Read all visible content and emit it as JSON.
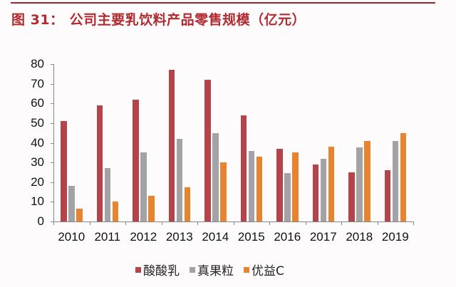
{
  "title": {
    "figure_label": "图 31：",
    "text": "公司主要乳饮料产品零售规模（亿元）"
  },
  "colors": {
    "rule": "#a5242a",
    "title": "#b02a2f",
    "series_1": "#b5444a",
    "series_2": "#a3a3a6",
    "series_3": "#e8832f"
  },
  "chart_data": {
    "type": "bar",
    "title": "公司主要乳饮料产品零售规模（亿元）",
    "xlabel": "",
    "ylabel": "",
    "ylim": [
      0,
      80
    ],
    "yticks": [
      0,
      10,
      20,
      30,
      40,
      50,
      60,
      70,
      80
    ],
    "grid": false,
    "legend_position": "bottom",
    "categories": [
      "2010",
      "2011",
      "2012",
      "2013",
      "2014",
      "2015",
      "2016",
      "2017",
      "2018",
      "2019"
    ],
    "series": [
      {
        "name": "酸酸乳",
        "color": "#b5444a",
        "values": [
          51,
          59,
          62,
          77,
          72,
          54,
          37,
          29,
          25,
          26
        ]
      },
      {
        "name": "真果粒",
        "color": "#a3a3a6",
        "values": [
          18,
          27,
          35,
          42,
          45,
          36,
          24.5,
          32,
          37.5,
          41
        ]
      },
      {
        "name": "优益C",
        "color": "#e8832f",
        "values": [
          6.5,
          10,
          13,
          17.5,
          30,
          33,
          35,
          38,
          41,
          45
        ]
      }
    ]
  },
  "legend": [
    {
      "label": "酸酸乳",
      "color": "#b5444a"
    },
    {
      "label": "真果粒",
      "color": "#a3a3a6"
    },
    {
      "label": "优益C",
      "color": "#e8832f"
    }
  ]
}
